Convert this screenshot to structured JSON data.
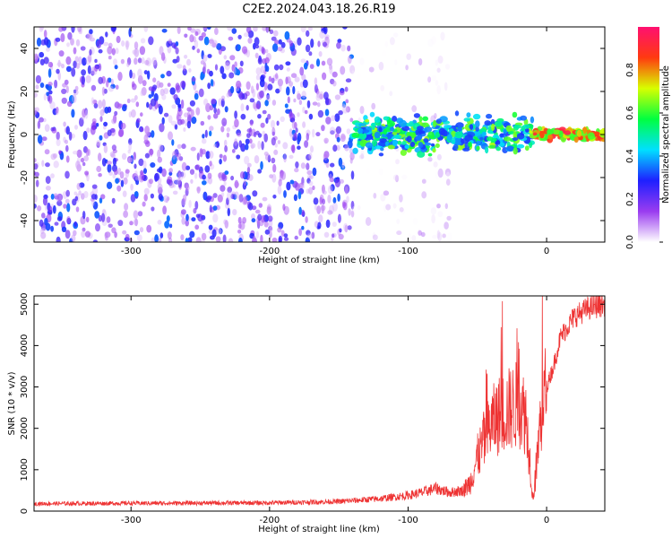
{
  "title": "C2E2.2024.043.18.26.R19",
  "chart_data": [
    {
      "type": "heatmap",
      "xlabel": "Height of straight line (km)",
      "ylabel": "Frequency (Hz)",
      "xlim": [
        -370,
        42
      ],
      "ylim": [
        -50,
        50
      ],
      "xticks": [
        -300,
        -200,
        -100,
        0
      ],
      "yticks": [
        -40,
        -20,
        0,
        20,
        40
      ],
      "colorbar": {
        "label": "Normalized spectral amplitude",
        "range": [
          0,
          1
        ],
        "ticks": [
          0.0,
          0.2,
          0.4,
          0.6,
          0.8
        ],
        "colormap": [
          "#ffffff",
          "#9a3cf0",
          "#1e20ff",
          "#00e0ff",
          "#00ff40",
          "#d8ff00",
          "#ff3a10",
          "#ff1070"
        ]
      },
      "regions": [
        {
          "x_range": [
            -370,
            -140
          ],
          "freq_spread": 50,
          "amplitude_range": [
            0.05,
            0.35
          ]
        },
        {
          "x_range": [
            -140,
            -70
          ],
          "freq_spread": 50,
          "amplitude_range": [
            0.0,
            0.1
          ]
        },
        {
          "x_range": [
            -140,
            -10
          ],
          "freq_center": 0,
          "freq_spread": 10,
          "amplitude_range": [
            0.3,
            0.7
          ]
        },
        {
          "x_range": [
            -10,
            42
          ],
          "freq_center": 0,
          "freq_spread": 3,
          "amplitude_range": [
            0.6,
            0.95
          ]
        }
      ]
    },
    {
      "type": "line",
      "xlabel": "Height of straight line (km)",
      "ylabel": "SNR (10 * v/v)",
      "xlim": [
        -370,
        42
      ],
      "ylim": [
        0,
        5200
      ],
      "xticks": [
        -300,
        -200,
        -100,
        0
      ],
      "yticks": [
        0,
        1000,
        2000,
        3000,
        4000,
        5000
      ],
      "series": [
        {
          "color": "#ee3333",
          "x": [
            -370,
            -300,
            -200,
            -150,
            -120,
            -100,
            -90,
            -80,
            -70,
            -60,
            -55,
            -50,
            -45,
            -40,
            -35,
            -30,
            -25,
            -20,
            -15,
            -12,
            -10,
            -8,
            -5,
            -2,
            0,
            5,
            10,
            20,
            30,
            42
          ],
          "y": [
            180,
            190,
            200,
            230,
            300,
            380,
            450,
            550,
            450,
            500,
            700,
            1300,
            1700,
            2100,
            2300,
            2400,
            2500,
            2600,
            2300,
            1200,
            300,
            800,
            2000,
            2700,
            3000,
            3500,
            4200,
            4700,
            4900,
            5000
          ]
        }
      ]
    }
  ]
}
